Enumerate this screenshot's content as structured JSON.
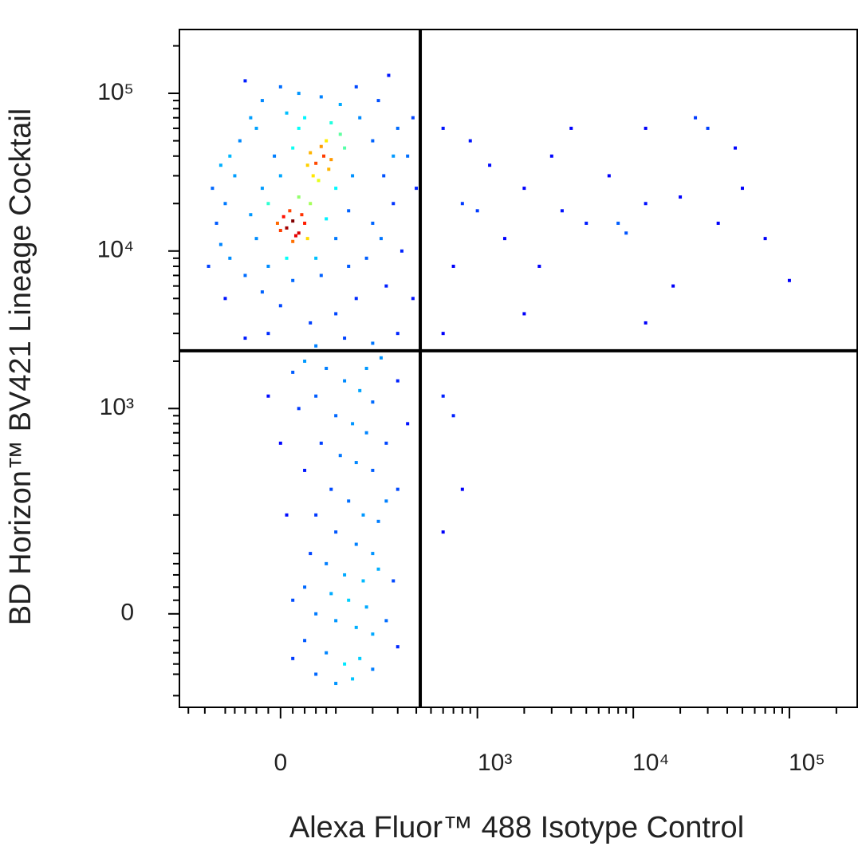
{
  "chart_data": {
    "type": "scatter",
    "x_label": "Alexa Fluor™ 488 Isotype Control",
    "y_label": "BD Horizon™ BV421 Lineage Cocktail",
    "xscale": "biexponential",
    "yscale": "biexponential",
    "colormap": "jet",
    "xlim": [
      -232,
      272000
    ],
    "ylim": [
      -183,
      254000
    ],
    "xticks": [
      0,
      {
        "value": 1000,
        "label": "10³"
      },
      {
        "value": 10000,
        "label": "10⁴"
      },
      {
        "value": 100000,
        "label": "10⁵"
      }
    ],
    "yticks": [
      0,
      {
        "value": 1000,
        "label": "10³"
      },
      {
        "value": 10000,
        "label": "10⁴"
      },
      {
        "value": 100000,
        "label": "10⁵"
      }
    ],
    "xminorticks": [
      -200,
      -150,
      -100,
      -80,
      -60,
      -40,
      -20,
      20,
      40,
      60,
      80,
      100,
      200,
      300,
      400,
      500,
      600,
      700,
      800,
      900,
      2000,
      3000,
      4000,
      5000,
      6000,
      7000,
      8000,
      9000,
      20000,
      30000,
      40000,
      50000,
      60000,
      70000,
      80000,
      90000,
      200000
    ],
    "yminorticks": [
      -150,
      -100,
      -80,
      -60,
      -40,
      -20,
      20,
      40,
      60,
      80,
      100,
      200,
      300,
      400,
      500,
      600,
      700,
      800,
      900,
      2000,
      3000,
      4000,
      5000,
      6000,
      7000,
      8000,
      9000,
      20000,
      30000,
      40000,
      50000,
      60000,
      70000,
      80000,
      90000,
      200000
    ],
    "gates": {
      "x": 425,
      "y": 2330
    },
    "x": [
      10,
      20,
      30,
      5,
      25,
      40,
      15,
      0,
      35,
      -5,
      20,
      45,
      60,
      75,
      50,
      85,
      70,
      55,
      90,
      65,
      45,
      80,
      -20,
      -40,
      -30,
      0,
      20,
      30,
      100,
      120,
      130,
      100,
      60,
      10,
      -50,
      -10,
      40,
      90,
      140,
      110,
      -20,
      50,
      30,
      80,
      -100,
      -120,
      -80,
      -70,
      -50,
      -30,
      0,
      30,
      70,
      110,
      160,
      200,
      240,
      280,
      200,
      180,
      250,
      150,
      100,
      50,
      0,
      -30,
      -60,
      -90,
      -110,
      -130,
      -90,
      -40,
      10,
      150,
      220,
      300,
      350,
      320,
      380,
      300,
      200,
      120,
      60,
      -20,
      -60,
      -100,
      20,
      70,
      130,
      230,
      280,
      -140,
      -110,
      400,
      380,
      260,
      -60,
      40,
      80,
      120,
      160,
      200,
      60,
      100,
      140,
      180,
      30,
      70,
      110,
      150,
      200,
      250,
      40,
      90,
      130,
      170,
      220,
      60,
      100,
      150,
      200,
      50,
      80,
      120,
      170,
      220,
      40,
      90,
      130,
      180,
      60,
      100,
      150,
      200,
      250,
      40,
      80,
      120,
      160,
      200,
      60,
      100,
      140,
      20,
      10,
      0,
      -20,
      300,
      350,
      300,
      280,
      300,
      20,
      250,
      180,
      230,
      20,
      600,
      800,
      1200,
      1500,
      2000,
      2500,
      3000,
      3500,
      5000,
      7000,
      9000,
      12000,
      12000,
      18000,
      20000,
      25000,
      35000,
      45000,
      50000,
      70000,
      100000,
      12000,
      2000,
      700,
      900,
      600,
      1000,
      4000,
      30000,
      8000,
      600,
      700,
      800,
      600
    ],
    "y": [
      14000,
      15500,
      13000,
      16500,
      12500,
      15000,
      18000,
      13500,
      17000,
      15000,
      11500,
      12000,
      36000,
      40000,
      42000,
      33000,
      46000,
      30000,
      38000,
      28000,
      35000,
      50000,
      20000,
      12000,
      25000,
      30000,
      45000,
      60000,
      25000,
      45000,
      18000,
      12000,
      9000,
      9000,
      17000,
      40000,
      70000,
      65000,
      30000,
      55000,
      8000,
      20000,
      22000,
      16000,
      20000,
      15000,
      30000,
      50000,
      70000,
      90000,
      110000,
      100000,
      95000,
      85000,
      70000,
      50000,
      30000,
      20000,
      15000,
      9000,
      6000,
      5000,
      4000,
      3500,
      4500,
      5500,
      7000,
      9000,
      11000,
      25000,
      40000,
      60000,
      75000,
      110000,
      90000,
      60000,
      40000,
      10000,
      5000,
      3000,
      2600,
      2800,
      2500,
      3000,
      2800,
      5000,
      6500,
      7000,
      8000,
      12000,
      40000,
      8000,
      35000,
      25000,
      70000,
      130000,
      120000,
      2000,
      1800,
      1500,
      1300,
      1100,
      1200,
      900,
      800,
      700,
      1000,
      600,
      500,
      450,
      400,
      600,
      400,
      300,
      250,
      200,
      180,
      200,
      150,
      120,
      100,
      100,
      80,
      60,
      50,
      70,
      40,
      30,
      20,
      10,
      0,
      -10,
      -20,
      -30,
      -10,
      -40,
      -60,
      -80,
      -70,
      -90,
      -100,
      -120,
      -110,
      -70,
      200,
      600,
      1200,
      1500,
      800,
      300,
      50,
      -50,
      20,
      250,
      1800,
      2100,
      1700,
      60000,
      20000,
      35000,
      12000,
      25000,
      8000,
      40000,
      18000,
      15000,
      30000,
      13000,
      60000,
      20000,
      6000,
      22000,
      70000,
      15000,
      45000,
      25000,
      12000,
      6500,
      3500,
      4000,
      8000,
      50000,
      3000,
      18000,
      60000,
      60000,
      15000,
      1200,
      900,
      300,
      150
    ]
  }
}
